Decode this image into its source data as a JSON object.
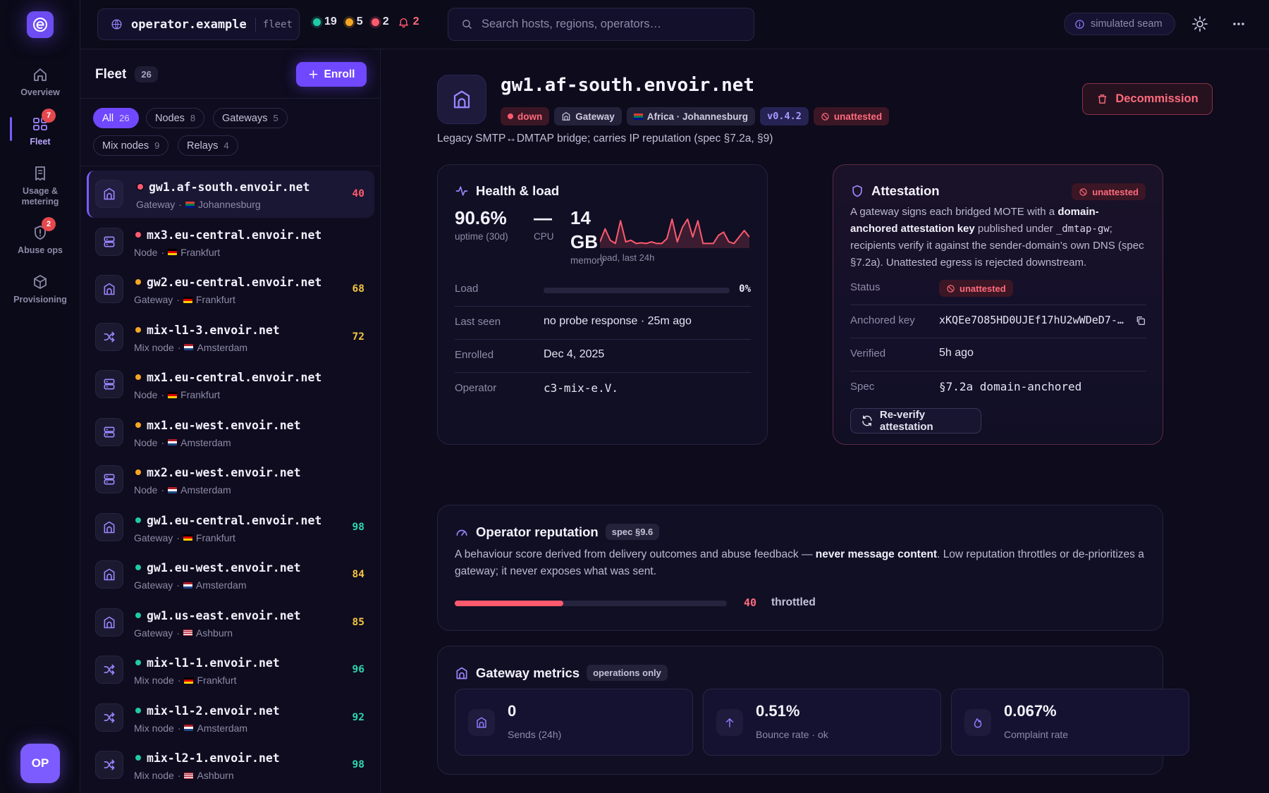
{
  "colors": {
    "accent": "#7048ff",
    "down": "#ff5a6e",
    "warn": "#f5a623",
    "ok": "#22c9a6",
    "score_low": "#ff5a6e",
    "score_mid": "#f5c542",
    "score_high": "#2ed8b3"
  },
  "rail": {
    "items": [
      {
        "label": "Overview",
        "icon": "home-icon"
      },
      {
        "label": "Fleet",
        "icon": "grid-icon",
        "badge": "7"
      },
      {
        "label_line1": "Usage &",
        "label_line2": "metering",
        "icon": "receipt-icon"
      },
      {
        "label": "Abuse ops",
        "icon": "shield-alert-icon",
        "badge": "2"
      },
      {
        "label": "Provisioning",
        "icon": "box-icon"
      }
    ],
    "avatar": "OP"
  },
  "topbar": {
    "host": "operator.example",
    "scope": "fleet",
    "counts": {
      "ok": "19",
      "warn": "5",
      "down": "2",
      "alerts": "2"
    },
    "search_placeholder": "Search hosts, regions, operators…",
    "seam_label": "simulated seam"
  },
  "fleet": {
    "title": "Fleet",
    "count": "26",
    "enroll_label": "Enroll",
    "filters": [
      {
        "label": "All",
        "n": "26",
        "active": true
      },
      {
        "label": "Nodes",
        "n": "8"
      },
      {
        "label": "Gateways",
        "n": "5"
      },
      {
        "label": "Mix nodes",
        "n": "9"
      },
      {
        "label": "Relays",
        "n": "4"
      }
    ],
    "rows": [
      {
        "name": "gw1.af-south.envoir.net",
        "kind": "Gateway",
        "city": "Johannesburg",
        "flag": "za",
        "status": "down",
        "score": "40",
        "icon": "gateway"
      },
      {
        "name": "mx3.eu-central.envoir.net",
        "kind": "Node",
        "city": "Frankfurt",
        "flag": "de",
        "status": "down",
        "score": "",
        "icon": "node"
      },
      {
        "name": "gw2.eu-central.envoir.net",
        "kind": "Gateway",
        "city": "Frankfurt",
        "flag": "de",
        "status": "warn",
        "score": "68",
        "icon": "gateway"
      },
      {
        "name": "mix-l1-3.envoir.net",
        "kind": "Mix node",
        "city": "Amsterdam",
        "flag": "nl",
        "status": "warn",
        "score": "72",
        "icon": "mix"
      },
      {
        "name": "mx1.eu-central.envoir.net",
        "kind": "Node",
        "city": "Frankfurt",
        "flag": "de",
        "status": "warn",
        "score": "",
        "icon": "node"
      },
      {
        "name": "mx1.eu-west.envoir.net",
        "kind": "Node",
        "city": "Amsterdam",
        "flag": "nl",
        "status": "warn",
        "score": "",
        "icon": "node"
      },
      {
        "name": "mx2.eu-west.envoir.net",
        "kind": "Node",
        "city": "Amsterdam",
        "flag": "nl",
        "status": "warn",
        "score": "",
        "icon": "node"
      },
      {
        "name": "gw1.eu-central.envoir.net",
        "kind": "Gateway",
        "city": "Frankfurt",
        "flag": "de",
        "status": "ok",
        "score": "98",
        "icon": "gateway"
      },
      {
        "name": "gw1.eu-west.envoir.net",
        "kind": "Gateway",
        "city": "Amsterdam",
        "flag": "nl",
        "status": "ok",
        "score": "84",
        "icon": "gateway"
      },
      {
        "name": "gw1.us-east.envoir.net",
        "kind": "Gateway",
        "city": "Ashburn",
        "flag": "us",
        "status": "ok",
        "score": "85",
        "icon": "gateway"
      },
      {
        "name": "mix-l1-1.envoir.net",
        "kind": "Mix node",
        "city": "Frankfurt",
        "flag": "de",
        "status": "ok",
        "score": "96",
        "icon": "mix"
      },
      {
        "name": "mix-l1-2.envoir.net",
        "kind": "Mix node",
        "city": "Amsterdam",
        "flag": "nl",
        "status": "ok",
        "score": "92",
        "icon": "mix"
      },
      {
        "name": "mix-l2-1.envoir.net",
        "kind": "Mix node",
        "city": "Ashburn",
        "flag": "us",
        "status": "ok",
        "score": "98",
        "icon": "mix"
      }
    ]
  },
  "detail": {
    "title": "gw1.af-south.envoir.net",
    "tags": {
      "status": "down",
      "kind": "Gateway",
      "region": "Africa · Johannesburg",
      "version": "v0.4.2",
      "attest": "unattested"
    },
    "subtitle": "Legacy SMTP↔DMTAP bridge; carries IP reputation (spec §7.2a, §9)",
    "decommission_label": "Decommission",
    "health": {
      "title": "Health & load",
      "uptime": "90.6%",
      "uptime_label": "uptime (30d)",
      "cpu": "—",
      "cpu_label": "CPU",
      "memory_line1": "14",
      "memory_line2": "GB",
      "memory_label": "memory",
      "spark_label": "load, last 24h",
      "spark_values": [
        0.15,
        0.55,
        0.2,
        0.1,
        0.8,
        0.15,
        0.2,
        0.1,
        0.12,
        0.1,
        0.15,
        0.1,
        0.1,
        0.25,
        0.85,
        0.15,
        0.6,
        0.85,
        0.3,
        0.8,
        0.1,
        0.1,
        0.1,
        0.35,
        0.45,
        0.15,
        0.1,
        0.3,
        0.5,
        0.3
      ],
      "load_label": "Load",
      "load_value": "0%",
      "load_fraction": 0,
      "rows": [
        {
          "k": "Last seen",
          "v": "no probe response · 25m ago"
        },
        {
          "k": "Enrolled",
          "v": "Dec 4, 2025"
        },
        {
          "k": "Operator",
          "v": "c3-mix-e.V."
        }
      ]
    },
    "attestation": {
      "title": "Attestation",
      "badge": "unattested",
      "body_1": "A gateway signs each bridged MOTE with a ",
      "body_b1": "domain-anchored attestation key",
      "body_2": " published under ",
      "body_code": "_dmtap-gw",
      "body_3": "; recipients verify it against the sender-domain’s own DNS (spec §7.2a). Unattested egress is rejected downstream.",
      "rows": [
        {
          "k": "Status",
          "v": "unattested"
        },
        {
          "k": "Anchored key",
          "v": "xKQEe7O85HD0UJEf17hU2wWDeD7-…"
        },
        {
          "k": "Verified",
          "v": "5h ago"
        },
        {
          "k": "Spec",
          "v": "§7.2a domain-anchored"
        }
      ],
      "reverify_label": "Re-verify attestation"
    },
    "reputation": {
      "title": "Operator reputation",
      "spec": "spec §9.6",
      "desc_1": "A behaviour score derived from delivery outcomes and abuse feedback — ",
      "desc_b": "never message content",
      "desc_2": ". Low reputation throttles or de-prioritizes a gateway; it never exposes what was sent.",
      "score": "40",
      "score_fraction": 0.4,
      "state": "throttled"
    },
    "metrics": {
      "title": "Gateway metrics",
      "tag": "operations only",
      "items": [
        {
          "value": "0",
          "label": "Sends (24h)",
          "icon": "gateway-icon"
        },
        {
          "value": "0.51%",
          "label": "Bounce rate · ok",
          "icon": "arrow-up-icon"
        },
        {
          "value": "0.067%",
          "label": "Complaint rate",
          "icon": "flame-icon"
        }
      ]
    }
  }
}
